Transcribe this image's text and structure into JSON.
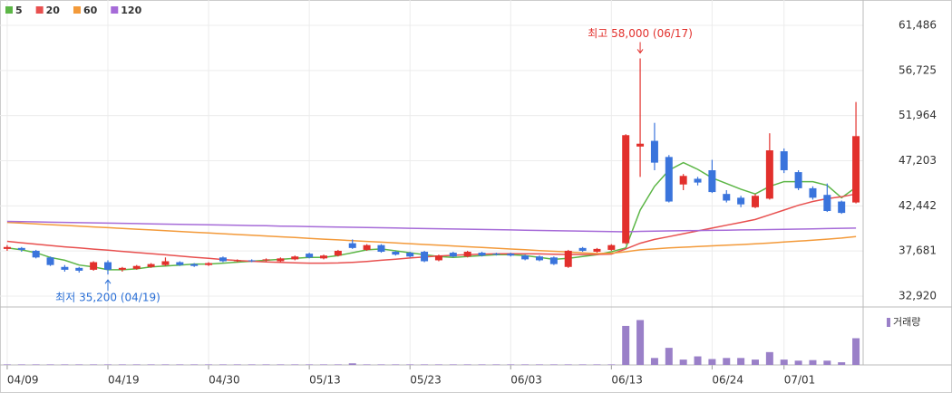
{
  "chart_data": {
    "type": "candlestick",
    "categories": [
      "04/09",
      null,
      null,
      null,
      null,
      null,
      null,
      "04/19",
      null,
      null,
      null,
      null,
      null,
      null,
      "04/30",
      null,
      null,
      null,
      null,
      null,
      null,
      "05/13",
      null,
      null,
      null,
      null,
      null,
      null,
      "05/23",
      null,
      null,
      null,
      null,
      null,
      null,
      "06/03",
      null,
      null,
      null,
      null,
      null,
      null,
      "06/13",
      null,
      null,
      null,
      null,
      null,
      null,
      "06/24",
      null,
      null,
      null,
      null,
      "07/01",
      null,
      null,
      null,
      null,
      null
    ],
    "open": [
      37900,
      38000,
      37700,
      37000,
      36000,
      35900,
      35700,
      36500,
      35700,
      35800,
      36000,
      36200,
      36500,
      36300,
      36200,
      37000,
      36600,
      36700,
      36700,
      36600,
      36800,
      37400,
      36900,
      37200,
      38500,
      37800,
      38300,
      37600,
      37500,
      37600,
      36700,
      37500,
      37100,
      37500,
      37400,
      37400,
      37200,
      37100,
      37000,
      36000,
      38000,
      37600,
      37800,
      38500,
      48700,
      49300,
      47600,
      44700,
      45300,
      46200,
      43700,
      43300,
      42300,
      43200,
      48200,
      46000,
      44300,
      43600,
      42900,
      42800
    ],
    "high": [
      38300,
      38100,
      37800,
      37100,
      36200,
      36000,
      36600,
      36700,
      36000,
      36200,
      36400,
      37000,
      36600,
      36400,
      36500,
      37100,
      36800,
      36800,
      36900,
      37000,
      37200,
      37500,
      37300,
      37800,
      38900,
      38400,
      38400,
      37700,
      37600,
      37700,
      37300,
      37600,
      37700,
      37600,
      37500,
      37500,
      37300,
      37200,
      37100,
      37800,
      38100,
      38000,
      38400,
      50000,
      58000,
      51200,
      47800,
      45800,
      45500,
      47300,
      44100,
      43500,
      43700,
      50100,
      48500,
      46200,
      44500,
      44800,
      43000,
      53400
    ],
    "low": [
      37700,
      37600,
      36900,
      36100,
      35500,
      35400,
      35600,
      35200,
      35500,
      35700,
      35900,
      36100,
      36100,
      36000,
      36100,
      36500,
      36500,
      36500,
      36600,
      36500,
      36700,
      36900,
      36800,
      37100,
      37900,
      37700,
      37500,
      37200,
      37000,
      36500,
      36600,
      37000,
      37000,
      37100,
      37200,
      37100,
      36700,
      36600,
      36200,
      35900,
      37600,
      37500,
      37700,
      38400,
      45500,
      46200,
      42800,
      44100,
      44600,
      43800,
      42800,
      42300,
      42200,
      43100,
      45900,
      44100,
      43100,
      41800,
      41600,
      42700
    ],
    "close": [
      38100,
      37800,
      37000,
      36200,
      35700,
      35600,
      36500,
      35700,
      35900,
      36100,
      36300,
      36600,
      36200,
      36100,
      36400,
      36600,
      36700,
      36600,
      36800,
      36900,
      37100,
      37000,
      37200,
      37700,
      38000,
      38300,
      37600,
      37300,
      37100,
      36600,
      37200,
      37100,
      37600,
      37200,
      37300,
      37200,
      36800,
      36700,
      36300,
      37700,
      37700,
      37900,
      38300,
      49900,
      49000,
      47000,
      42900,
      45600,
      44900,
      43900,
      43000,
      42600,
      43500,
      48300,
      46200,
      44300,
      43300,
      41900,
      41700,
      49800
    ],
    "up_color": "#e2302c",
    "down_color": "#3a74dc",
    "series": [
      {
        "name": "5",
        "color": "#5cb646",
        "values": [
          38000,
          37800,
          37500,
          37000,
          36700,
          36200,
          36000,
          35700,
          35700,
          35800,
          36000,
          36100,
          36200,
          36300,
          36300,
          36400,
          36500,
          36600,
          36700,
          36800,
          36900,
          37000,
          37000,
          37200,
          37500,
          37800,
          37900,
          37700,
          37500,
          37300,
          37100,
          37000,
          37100,
          37200,
          37300,
          37300,
          37200,
          37000,
          36800,
          36900,
          37100,
          37300,
          37600,
          38000,
          42000,
          44500,
          46200,
          47000,
          46300,
          45400,
          44800,
          44200,
          43700,
          44500,
          45000,
          45000,
          45000,
          44600,
          43300,
          44400
        ]
      },
      {
        "name": "20",
        "color": "#e8504f",
        "values": [
          38700,
          38550,
          38400,
          38260,
          38120,
          38000,
          37880,
          37760,
          37640,
          37520,
          37400,
          37280,
          37150,
          37020,
          36900,
          36780,
          36680,
          36600,
          36530,
          36470,
          36430,
          36400,
          36400,
          36420,
          36480,
          36580,
          36700,
          36820,
          36940,
          37050,
          37150,
          37230,
          37300,
          37350,
          37390,
          37400,
          37390,
          37370,
          37340,
          37320,
          37310,
          37320,
          37350,
          37900,
          38500,
          38900,
          39200,
          39500,
          39800,
          40100,
          40400,
          40700,
          41000,
          41500,
          42000,
          42500,
          42900,
          43200,
          43400,
          43700
        ]
      },
      {
        "name": "60",
        "color": "#f39a3a",
        "values": [
          40700,
          40620,
          40540,
          40460,
          40380,
          40300,
          40220,
          40140,
          40060,
          39980,
          39900,
          39820,
          39740,
          39660,
          39580,
          39500,
          39420,
          39340,
          39260,
          39180,
          39100,
          39010,
          38930,
          38850,
          38770,
          38690,
          38610,
          38530,
          38450,
          38370,
          38290,
          38210,
          38130,
          38050,
          37970,
          37890,
          37810,
          37730,
          37650,
          37570,
          37490,
          37410,
          37450,
          37600,
          37800,
          37900,
          38000,
          38080,
          38150,
          38220,
          38290,
          38360,
          38430,
          38520,
          38620,
          38720,
          38820,
          38930,
          39040,
          39200
        ]
      },
      {
        "name": "120",
        "color": "#a66bd8",
        "values": [
          40800,
          40770,
          40750,
          40720,
          40700,
          40670,
          40650,
          40620,
          40600,
          40570,
          40540,
          40520,
          40490,
          40470,
          40440,
          40420,
          40390,
          40360,
          40340,
          40310,
          40290,
          40260,
          40230,
          40210,
          40180,
          40160,
          40130,
          40110,
          40080,
          40050,
          40030,
          40000,
          39980,
          39950,
          39930,
          39900,
          39870,
          39850,
          39820,
          39800,
          39770,
          39750,
          39720,
          39700,
          39750,
          39780,
          39800,
          39820,
          39840,
          39860,
          39880,
          39900,
          39920,
          39940,
          39960,
          39990,
          40020,
          40050,
          40080,
          40100
        ]
      }
    ],
    "volume": {
      "name": "거래량",
      "color": "#9a80c8",
      "values": [
        1,
        1,
        1,
        1,
        1,
        1,
        1,
        1,
        1,
        1,
        1,
        1,
        1,
        1,
        1,
        1,
        1,
        1,
        1,
        1,
        1,
        1,
        1,
        1,
        3,
        1,
        1,
        1,
        1,
        1,
        1,
        1,
        1,
        1,
        1,
        1,
        1,
        1,
        1,
        1,
        1,
        1,
        1,
        73,
        84,
        13,
        32,
        10,
        16,
        11,
        13,
        13,
        10,
        24,
        10,
        8,
        9,
        8,
        5,
        50
      ]
    },
    "volume_ylim": [
      0,
      100
    ],
    "high_label": "최고 58,000 (06/17)",
    "low_label": "최저 35,200 (04/19)",
    "ylim": [
      31870,
      62250
    ],
    "yticks": [
      {
        "value": 32920,
        "label": "32,920"
      },
      {
        "value": 37681,
        "label": "37,681"
      },
      {
        "value": 42442,
        "label": "42,442"
      },
      {
        "value": 47203,
        "label": "47,203"
      },
      {
        "value": 51964,
        "label": "51,964"
      },
      {
        "value": 56725,
        "label": "56,725"
      },
      {
        "value": 61486,
        "label": "61,486"
      }
    ],
    "grid": true
  }
}
